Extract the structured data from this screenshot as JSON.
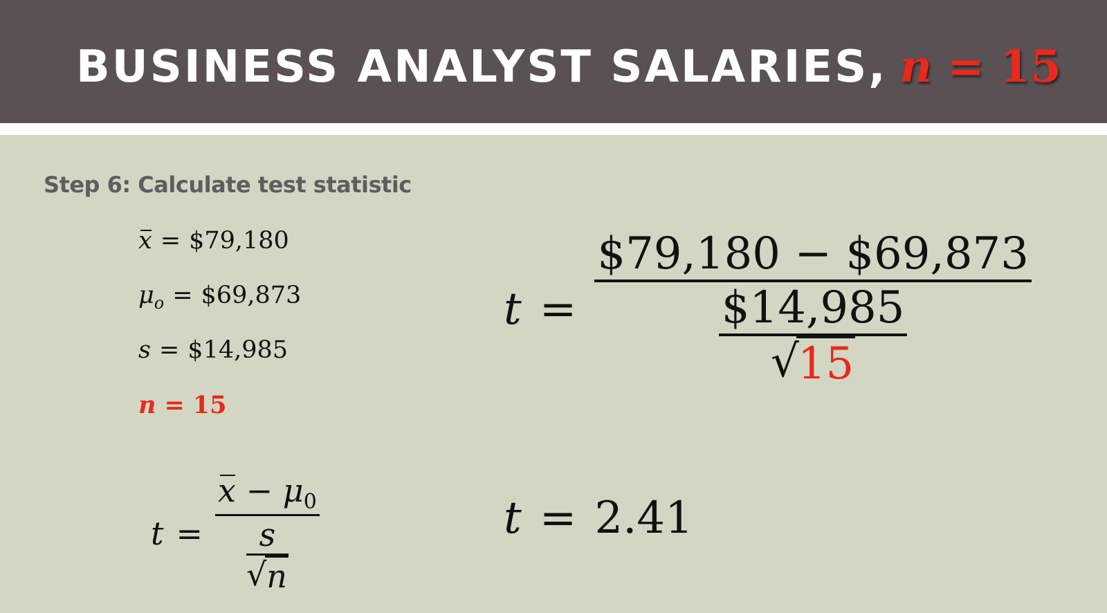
{
  "title": {
    "text": "BUSINESS ANALYST SALARIES,",
    "n_var": "n",
    "equals": "=",
    "n_value": "15"
  },
  "step": "Step 6: Calculate test statistic",
  "given": {
    "xbar": {
      "var": "x",
      "eq": "=",
      "value": "$79,180"
    },
    "mu": {
      "var": "μ",
      "sub": "o",
      "eq": "=",
      "value": "$69,873"
    },
    "s": {
      "var": "s",
      "eq": "=",
      "value": "$14,985"
    },
    "n": {
      "var": "n",
      "eq": "=",
      "value": "15"
    }
  },
  "formula": {
    "lhs": "t",
    "eq": "=",
    "num_x": "x",
    "minus": "−",
    "mu": "μ",
    "mu_sub": "0",
    "den_s": "s",
    "radical": "√",
    "den_n": "n"
  },
  "substituted": {
    "lhs": "t",
    "eq": "=",
    "numerator": "$79,180 − $69,873",
    "denominator": "$14,985",
    "radical": "√",
    "root": "15"
  },
  "result": {
    "lhs": "t",
    "eq": "=",
    "value": "2.41"
  },
  "colors": {
    "header_bg": "#595154",
    "body_bg": "#d3d6c3",
    "accent_red": "#e8291c",
    "step_text": "#5e5e5e"
  }
}
